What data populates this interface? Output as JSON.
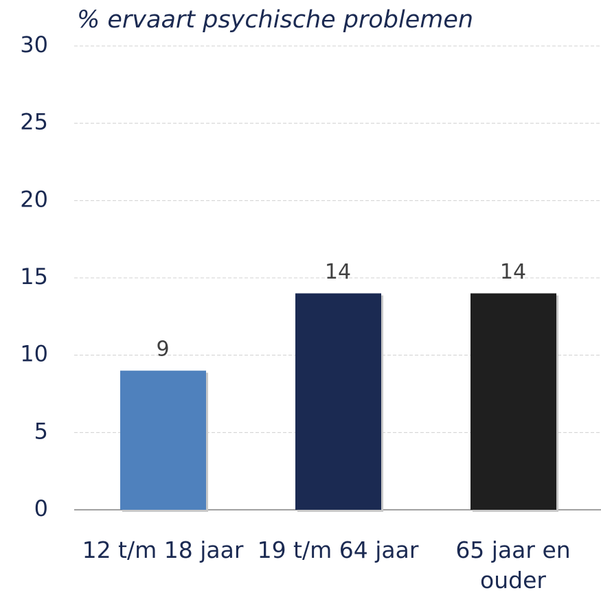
{
  "chart_data": {
    "type": "bar",
    "title": "% ervaart psychische problemen",
    "categories": [
      "12 t/m 18 jaar",
      "19 t/m 64 jaar",
      "65 jaar en ouder"
    ],
    "values": [
      9,
      14,
      14
    ],
    "colors": [
      "#4f81bd",
      "#1b2a52",
      "#1f1f1f"
    ],
    "ylim": [
      0,
      30
    ],
    "yticks": [
      0,
      5,
      10,
      15,
      20,
      25,
      30
    ],
    "grid": true
  }
}
